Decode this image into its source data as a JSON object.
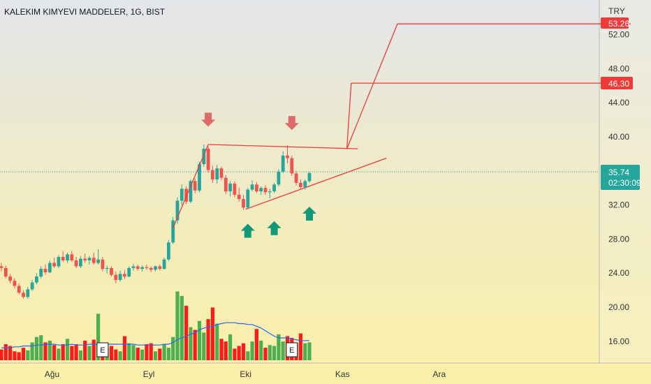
{
  "header": {
    "title": "KALEKIM KIMYEVI MADDELER, 1G, BIST"
  },
  "price_axis": {
    "currency": "TRY",
    "ticks": [
      "52.00",
      "48.00",
      "44.00",
      "40.00",
      "32.00",
      "28.00",
      "24.00",
      "20.00",
      "16.00"
    ],
    "tick_values": [
      52,
      48,
      44,
      40,
      32,
      28,
      24,
      20,
      16
    ],
    "badges": {
      "target_high": {
        "label": "53.26",
        "value": 53.26
      },
      "target_low": {
        "label": "46.30",
        "value": 46.3
      },
      "last_price": {
        "label": "35.74",
        "value": 35.74
      },
      "countdown": "02:30:09"
    }
  },
  "time_axis": {
    "labels": [
      "Ağu",
      "Eyl",
      "Eki",
      "Kas",
      "Ara"
    ]
  },
  "earnings_marker": "E",
  "colors": {
    "up": "#26a69a",
    "down": "#ef5350",
    "volume_up": "#4caf50",
    "volume_down": "#ff1a1a",
    "ma": "#2962ff",
    "pattern": "#ef3a3a",
    "arrow_up": "#129978",
    "arrow_down": "#e06a6a",
    "bg_top": "#e3e6ea",
    "bg_bottom": "#fbf0a8"
  },
  "chart_data": {
    "type": "candlestick",
    "title": "KALEKIM KIMYEVI MADDELER, 1G, BIST",
    "currency": "TRY",
    "ylim": [
      13.5,
      57
    ],
    "last_price": 35.74,
    "candles": [
      [
        24.8,
        25.2,
        24.2,
        24.6
      ],
      [
        24.6,
        24.9,
        23.4,
        23.6
      ],
      [
        23.6,
        23.9,
        22.8,
        23.1
      ],
      [
        23.1,
        23.4,
        22.2,
        22.5
      ],
      [
        22.5,
        22.8,
        21.5,
        21.7
      ],
      [
        21.7,
        22.0,
        21.0,
        21.2
      ],
      [
        21.2,
        22.4,
        21.0,
        22.1
      ],
      [
        22.1,
        23.2,
        21.9,
        22.9
      ],
      [
        22.9,
        24.0,
        22.7,
        23.6
      ],
      [
        23.6,
        24.8,
        23.4,
        24.5
      ],
      [
        24.5,
        25.0,
        23.8,
        24.1
      ],
      [
        24.1,
        25.5,
        24.0,
        25.2
      ],
      [
        25.2,
        25.8,
        24.6,
        24.8
      ],
      [
        24.8,
        26.1,
        24.6,
        25.9
      ],
      [
        25.9,
        26.6,
        25.3,
        25.5
      ],
      [
        25.5,
        26.4,
        25.2,
        26.2
      ],
      [
        26.2,
        26.6,
        25.3,
        25.5
      ],
      [
        25.5,
        25.9,
        24.6,
        24.8
      ],
      [
        24.8,
        26.0,
        24.6,
        25.7
      ],
      [
        25.7,
        26.3,
        25.2,
        25.5
      ],
      [
        25.5,
        26.0,
        25.0,
        25.8
      ],
      [
        25.8,
        26.4,
        25.0,
        25.2
      ],
      [
        25.2,
        26.8,
        25.0,
        25.6
      ],
      [
        25.6,
        25.9,
        24.2,
        24.5
      ],
      [
        24.5,
        24.9,
        24.0,
        24.6
      ],
      [
        24.6,
        24.8,
        23.6,
        23.8
      ],
      [
        23.8,
        24.2,
        22.8,
        23.2
      ],
      [
        23.2,
        24.3,
        23.0,
        23.9
      ],
      [
        23.9,
        24.4,
        23.3,
        23.6
      ],
      [
        23.6,
        24.8,
        23.5,
        24.6
      ],
      [
        24.6,
        25.1,
        24.3,
        24.8
      ],
      [
        24.8,
        25.0,
        24.3,
        24.5
      ],
      [
        24.5,
        24.9,
        24.2,
        24.7
      ],
      [
        24.7,
        25.0,
        24.4,
        24.6
      ],
      [
        24.6,
        24.8,
        24.1,
        24.4
      ],
      [
        24.4,
        24.9,
        24.2,
        24.8
      ],
      [
        24.8,
        25.0,
        24.3,
        24.5
      ],
      [
        24.5,
        25.8,
        24.4,
        25.6
      ],
      [
        25.6,
        27.9,
        25.4,
        27.6
      ],
      [
        27.6,
        30.6,
        27.4,
        30.2
      ],
      [
        30.2,
        32.9,
        29.8,
        32.5
      ],
      [
        32.5,
        34.4,
        32.0,
        33.9
      ],
      [
        33.9,
        34.2,
        32.1,
        32.4
      ],
      [
        32.4,
        35.0,
        32.2,
        34.8
      ],
      [
        34.8,
        35.1,
        33.4,
        33.7
      ],
      [
        33.7,
        37.1,
        33.5,
        36.8
      ],
      [
        36.8,
        39.1,
        36.5,
        38.6
      ],
      [
        38.6,
        38.9,
        35.8,
        36.1
      ],
      [
        36.1,
        36.6,
        34.6,
        35.0
      ],
      [
        35.0,
        36.7,
        34.5,
        36.3
      ],
      [
        36.3,
        36.5,
        34.9,
        35.2
      ],
      [
        35.2,
        35.5,
        33.3,
        33.6
      ],
      [
        33.6,
        34.8,
        33.0,
        34.5
      ],
      [
        34.5,
        34.8,
        32.9,
        33.2
      ],
      [
        33.2,
        34.0,
        32.4,
        32.7
      ],
      [
        32.7,
        33.2,
        31.4,
        31.7
      ],
      [
        31.7,
        34.0,
        31.5,
        33.8
      ],
      [
        33.8,
        34.9,
        33.6,
        34.4
      ],
      [
        34.4,
        34.7,
        33.4,
        33.6
      ],
      [
        33.6,
        34.2,
        33.2,
        34.0
      ],
      [
        34.0,
        34.3,
        33.2,
        33.5
      ],
      [
        33.5,
        33.9,
        32.8,
        33.6
      ],
      [
        33.6,
        34.6,
        33.4,
        34.4
      ],
      [
        34.4,
        36.2,
        34.2,
        35.9
      ],
      [
        35.9,
        38.3,
        35.7,
        37.8
      ],
      [
        37.8,
        39.0,
        36.9,
        37.5
      ],
      [
        37.5,
        37.8,
        35.4,
        35.7
      ],
      [
        35.7,
        36.0,
        34.3,
        34.6
      ],
      [
        34.6,
        35.0,
        33.9,
        34.1
      ],
      [
        34.1,
        35.0,
        33.8,
        34.8
      ],
      [
        34.8,
        35.9,
        34.6,
        35.74
      ]
    ],
    "volume_scale": [
      0,
      100
    ],
    "volumes": [
      12,
      18,
      16,
      10,
      9,
      14,
      11,
      20,
      26,
      28,
      20,
      22,
      17,
      13,
      18,
      24,
      16,
      18,
      11,
      22,
      16,
      23,
      52,
      18,
      14,
      16,
      12,
      10,
      27,
      19,
      17,
      14,
      12,
      18,
      19,
      10,
      13,
      18,
      14,
      26,
      77,
      72,
      61,
      37,
      34,
      44,
      31,
      46,
      59,
      41,
      24,
      21,
      29,
      13,
      16,
      19,
      10,
      21,
      35,
      22,
      14,
      17,
      16,
      29,
      21,
      27,
      25,
      19,
      30,
      19,
      20
    ],
    "ma": [
      14,
      14,
      14,
      15,
      15,
      16,
      16,
      16,
      17,
      17,
      18,
      18,
      18,
      17,
      17,
      17,
      18,
      17,
      17,
      17,
      18,
      18,
      18,
      18,
      18,
      18,
      18,
      18,
      18,
      18,
      18,
      17,
      17,
      17,
      17,
      17,
      17,
      18,
      18,
      20,
      23,
      25,
      27,
      29,
      31,
      34,
      36,
      37,
      38,
      40,
      41,
      42,
      42,
      42,
      41,
      41,
      40,
      40,
      38,
      36,
      33,
      30,
      27,
      25,
      25,
      25,
      24,
      23,
      22,
      22,
      22
    ],
    "earnings_days": [
      23,
      66
    ],
    "time_labels": [
      {
        "label": "Ağu",
        "day": 11.5
      },
      {
        "label": "Eyl",
        "day": 33.5
      },
      {
        "label": "Eki",
        "day": 55.5
      },
      {
        "label": "Kas",
        "day": 77.5
      },
      {
        "label": "Ara",
        "day": 99.5
      }
    ],
    "pattern_lines": [
      {
        "kind": "resistance",
        "points": [
          [
            47,
            39.1
          ],
          [
            81,
            38.6
          ]
        ]
      },
      {
        "kind": "support",
        "points": [
          [
            55.5,
            31.5
          ],
          [
            87.5,
            37.5
          ]
        ]
      },
      {
        "kind": "flagpole",
        "points": [
          [
            39,
            29.3
          ],
          [
            47,
            39.1
          ]
        ]
      },
      {
        "kind": "measured-move",
        "points": [
          [
            78.5,
            38.6
          ],
          [
            79.5,
            46.3
          ],
          [
            143,
            46.3
          ]
        ]
      },
      {
        "kind": "measured-move",
        "points": [
          [
            78.5,
            38.6
          ],
          [
            90,
            53.26
          ],
          [
            143,
            53.26
          ]
        ]
      }
    ],
    "arrows_up": [
      {
        "day": 56,
        "value": 29.8
      },
      {
        "day": 62,
        "value": 30.1
      },
      {
        "day": 70,
        "value": 31.8
      }
    ],
    "arrows_down": [
      {
        "day": 47,
        "value": 41.2
      },
      {
        "day": 66,
        "value": 40.8
      }
    ]
  }
}
